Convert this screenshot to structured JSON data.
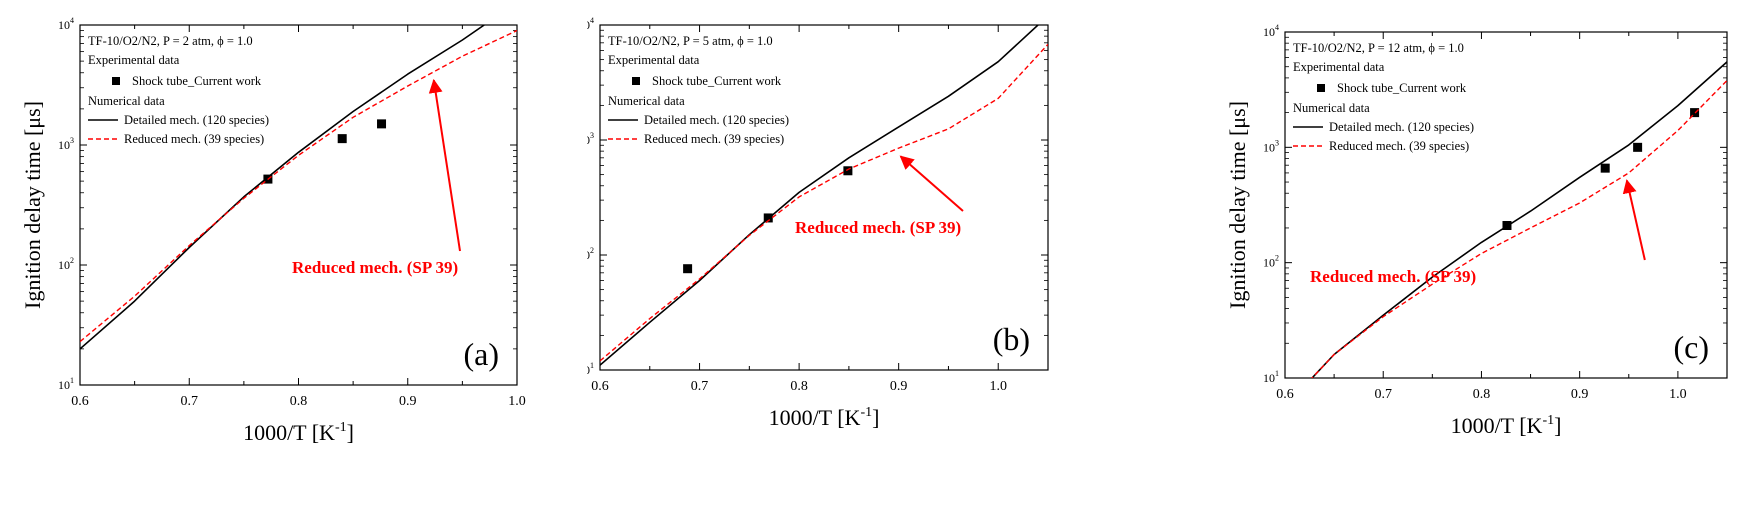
{
  "colors": {
    "detailed": "#000000",
    "reduced": "#ff0000",
    "experiment": "#000000",
    "annotation": "#ff0000"
  },
  "chart_data": [
    {
      "type": "line",
      "panel_label": "(a)",
      "xlabel": "1000/T [K-1]",
      "ylabel": "Ignition delay time [μs]",
      "xlim": [
        0.6,
        1.0
      ],
      "ylim": [
        10,
        10000
      ],
      "yscale": "log",
      "xticks": [
        0.6,
        0.7,
        0.8,
        0.9,
        1.0
      ],
      "xtick_labels": [
        "0.6",
        "0.7",
        "0.8",
        "0.9",
        "1.0"
      ],
      "legend_title": "TF-10/O2/N2, P = 2 atm, ϕ = 1.0",
      "legend_exp_header": "Experimental data",
      "legend_num_header": "Numerical data",
      "series": [
        {
          "name": "Shock tube_Current work",
          "kind": "scatter",
          "x": [
            0.772,
            0.84,
            0.876
          ],
          "y": [
            520,
            1130,
            1500
          ]
        },
        {
          "name": "Detailed mech. (120 species)",
          "kind": "solid",
          "x": [
            0.6,
            0.65,
            0.7,
            0.75,
            0.8,
            0.85,
            0.9,
            0.95,
            0.97
          ],
          "y": [
            20,
            50,
            140,
            370,
            870,
            1900,
            3900,
            7500,
            10000
          ]
        },
        {
          "name": "Reduced mech. (39 species)",
          "kind": "dashed",
          "x": [
            0.6,
            0.65,
            0.7,
            0.75,
            0.8,
            0.85,
            0.9,
            0.95,
            1.0
          ],
          "y": [
            23,
            55,
            145,
            360,
            820,
            1700,
            3100,
            5500,
            9000
          ]
        }
      ],
      "annotation": {
        "text": "Reduced mech. (SP 39)",
        "arrow_to": [
          0.922,
          4200
        ]
      }
    },
    {
      "type": "line",
      "panel_label": "(b)",
      "xlabel": "1000/T [K-1]",
      "ylabel": "Ignition delay time [μs]",
      "xlim": [
        0.6,
        1.05
      ],
      "ylim": [
        10,
        10000
      ],
      "yscale": "log",
      "xticks": [
        0.6,
        0.7,
        0.8,
        0.9,
        1.0
      ],
      "xtick_labels": [
        "0.6",
        "0.7",
        "0.8",
        "0.9",
        "1.0"
      ],
      "legend_title": "TF-10/O2/N2, P = 5 atm, ϕ = 1.0",
      "legend_exp_header": "Experimental data",
      "legend_num_header": "Numerical data",
      "series": [
        {
          "name": "Shock tube_Current work",
          "kind": "scatter",
          "x": [
            0.688,
            0.769,
            0.849
          ],
          "y": [
            76,
            210,
            540
          ]
        },
        {
          "name": "Detailed mech. (120 species)",
          "kind": "solid",
          "x": [
            0.6,
            0.65,
            0.7,
            0.75,
            0.8,
            0.85,
            0.9,
            0.95,
            1.0,
            1.04
          ],
          "y": [
            11,
            26,
            60,
            150,
            350,
            700,
            1300,
            2400,
            4800,
            10000
          ]
        },
        {
          "name": "Reduced mech. (39 species)",
          "kind": "dashed",
          "x": [
            0.6,
            0.65,
            0.7,
            0.75,
            0.8,
            0.85,
            0.9,
            0.95,
            1.0,
            1.05
          ],
          "y": [
            12,
            28,
            62,
            148,
            320,
            560,
            850,
            1250,
            2300,
            6800
          ]
        }
      ],
      "annotation": {
        "text": "Reduced mech. (SP 39)",
        "arrow_to": [
          0.9,
          880
        ]
      }
    },
    {
      "type": "line",
      "panel_label": "(c)",
      "xlabel": "1000/T [K-1]",
      "ylabel": "Ignition delay time [μs]",
      "xlim": [
        0.6,
        1.05
      ],
      "ylim": [
        10,
        10000
      ],
      "yscale": "log",
      "xticks": [
        0.6,
        0.7,
        0.8,
        0.9,
        1.0
      ],
      "xtick_labels": [
        "0.6",
        "0.7",
        "0.8",
        "0.9",
        "1.0"
      ],
      "legend_title": "TF-10/O2/N2, P = 12 atm, ϕ = 1.0",
      "legend_exp_header": "Experimental data",
      "legend_num_header": "Numerical data",
      "series": [
        {
          "name": "Shock tube_Current work",
          "kind": "scatter",
          "x": [
            0.826,
            0.926,
            0.959,
            1.017
          ],
          "y": [
            210,
            660,
            1000,
            2000
          ]
        },
        {
          "name": "Detailed mech. (120 species)",
          "kind": "solid",
          "x": [
            0.625,
            0.65,
            0.7,
            0.75,
            0.8,
            0.85,
            0.9,
            0.95,
            1.0,
            1.05
          ],
          "y": [
            9.5,
            16,
            35,
            75,
            150,
            280,
            550,
            1050,
            2300,
            5500
          ]
        },
        {
          "name": "Reduced mech. (39 species)",
          "kind": "dashed",
          "x": [
            0.625,
            0.65,
            0.7,
            0.75,
            0.8,
            0.85,
            0.9,
            0.95,
            1.0,
            1.05
          ],
          "y": [
            9.5,
            16,
            34,
            65,
            120,
            200,
            330,
            600,
            1400,
            3800
          ]
        }
      ],
      "annotation": {
        "text": "Reduced mech. (SP 39)",
        "arrow_to": [
          0.946,
          630
        ]
      }
    }
  ]
}
